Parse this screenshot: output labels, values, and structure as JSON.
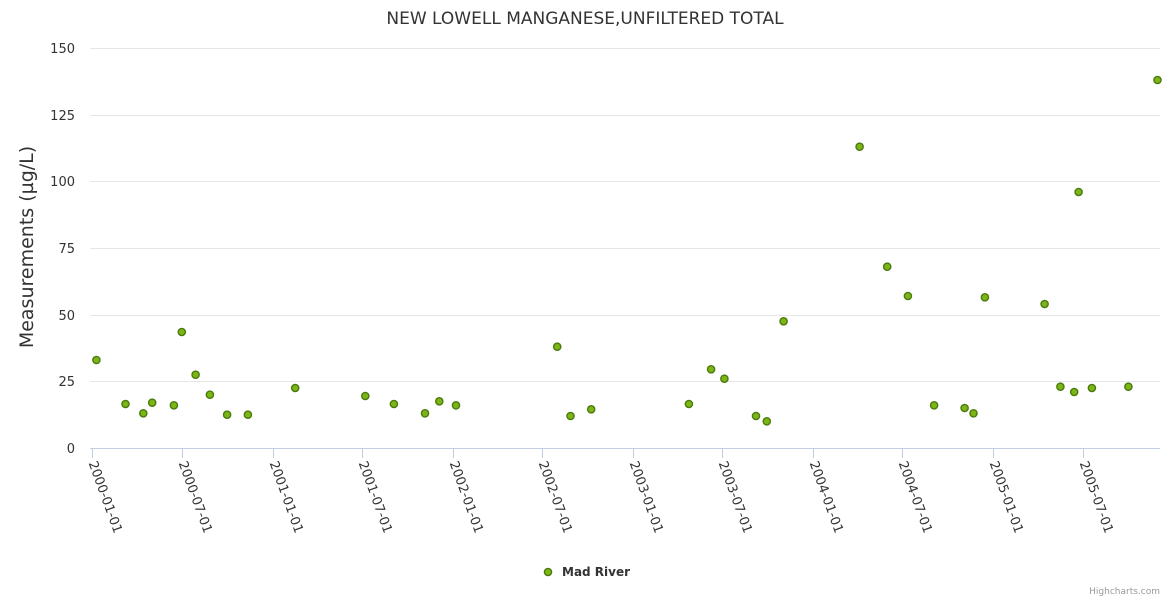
{
  "chart_data": {
    "type": "scatter",
    "title": "NEW LOWELL MANGANESE,UNFILTERED TOTAL",
    "xlabel": "",
    "ylabel": "Measurements (µg/L)",
    "x_type": "date",
    "xlim": [
      "1999-12-28",
      "2005-12-05"
    ],
    "ylim": [
      0,
      150
    ],
    "y_ticks": [
      0,
      25,
      50,
      75,
      100,
      125,
      150
    ],
    "x_ticks": [
      "2000-01-01",
      "2000-07-01",
      "2001-01-01",
      "2001-07-01",
      "2002-01-01",
      "2002-07-01",
      "2003-01-01",
      "2003-07-01",
      "2004-01-01",
      "2004-07-01",
      "2005-01-01",
      "2005-07-01"
    ],
    "grid": "horizontal",
    "legend": "bottom-center",
    "series": [
      {
        "name": "Mad River",
        "color": "#7cb518",
        "points": [
          {
            "x": "2000-01-10",
            "y": 33
          },
          {
            "x": "2000-03-09",
            "y": 16.5
          },
          {
            "x": "2000-04-14",
            "y": 13
          },
          {
            "x": "2000-05-02",
            "y": 17
          },
          {
            "x": "2000-06-15",
            "y": 16
          },
          {
            "x": "2000-07-01",
            "y": 43.5
          },
          {
            "x": "2000-07-29",
            "y": 27.5
          },
          {
            "x": "2000-08-27",
            "y": 20
          },
          {
            "x": "2000-10-01",
            "y": 12.5
          },
          {
            "x": "2000-11-12",
            "y": 12.5
          },
          {
            "x": "2001-02-16",
            "y": 22.5
          },
          {
            "x": "2001-07-08",
            "y": 19.5
          },
          {
            "x": "2001-09-04",
            "y": 16.5
          },
          {
            "x": "2001-11-06",
            "y": 13
          },
          {
            "x": "2001-12-05",
            "y": 17.5
          },
          {
            "x": "2002-01-08",
            "y": 16
          },
          {
            "x": "2002-08-01",
            "y": 38
          },
          {
            "x": "2002-08-28",
            "y": 12
          },
          {
            "x": "2002-10-09",
            "y": 14.5
          },
          {
            "x": "2003-04-25",
            "y": 16.5
          },
          {
            "x": "2003-06-09",
            "y": 29.5
          },
          {
            "x": "2003-07-06",
            "y": 26
          },
          {
            "x": "2003-09-08",
            "y": 12
          },
          {
            "x": "2003-09-30",
            "y": 10
          },
          {
            "x": "2003-11-03",
            "y": 47.5
          },
          {
            "x": "2004-04-05",
            "y": 113
          },
          {
            "x": "2004-05-31",
            "y": 68
          },
          {
            "x": "2004-07-12",
            "y": 57
          },
          {
            "x": "2004-09-03",
            "y": 16
          },
          {
            "x": "2004-11-04",
            "y": 15
          },
          {
            "x": "2004-11-22",
            "y": 13
          },
          {
            "x": "2004-12-15",
            "y": 56.5
          },
          {
            "x": "2005-04-15",
            "y": 54
          },
          {
            "x": "2005-05-17",
            "y": 23
          },
          {
            "x": "2005-06-14",
            "y": 21
          },
          {
            "x": "2005-06-23",
            "y": 96
          },
          {
            "x": "2005-07-20",
            "y": 22.5
          },
          {
            "x": "2005-10-02",
            "y": 23
          },
          {
            "x": "2005-11-30",
            "y": 138
          }
        ]
      }
    ]
  },
  "credits": "Highcharts.com"
}
